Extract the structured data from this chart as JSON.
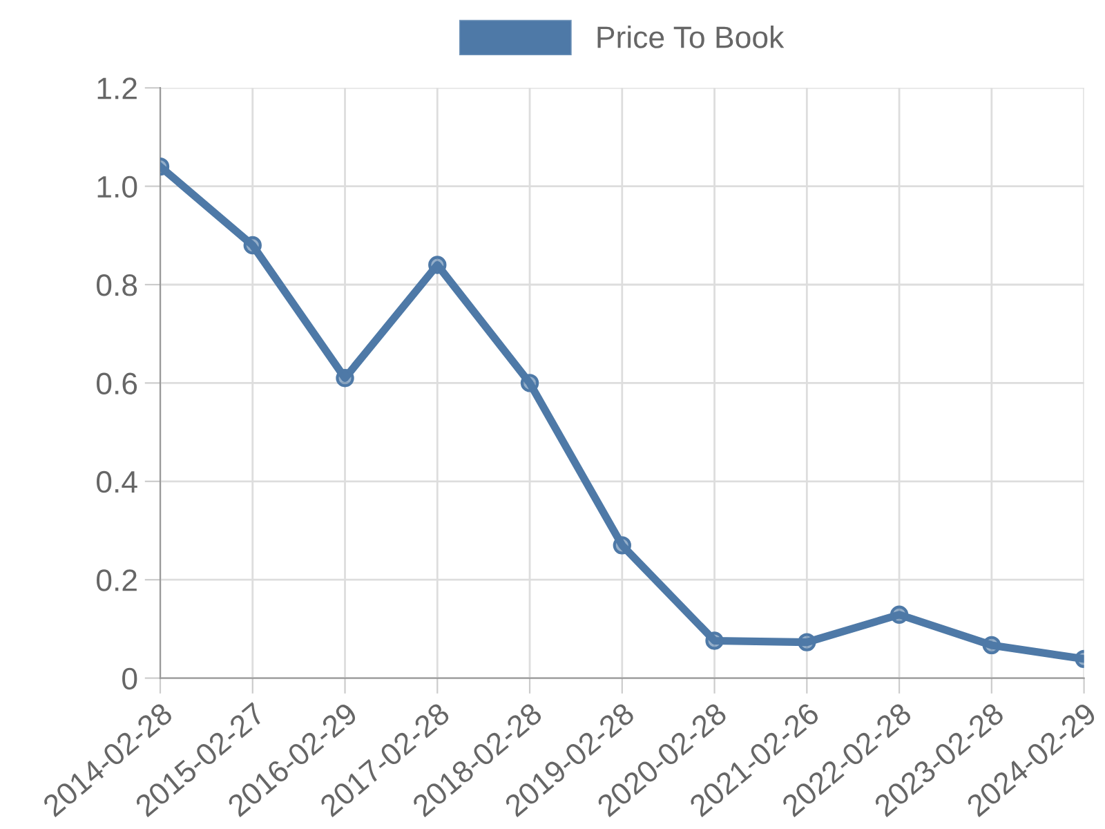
{
  "chart_data": {
    "type": "line",
    "categories": [
      "2014-02-28",
      "2015-02-27",
      "2016-02-29",
      "2017-02-28",
      "2018-02-28",
      "2019-02-28",
      "2020-02-28",
      "2021-02-26",
      "2022-02-28",
      "2023-02-28",
      "2024-02-29"
    ],
    "series": [
      {
        "name": "Price To Book",
        "color": "#4e79a7",
        "values": [
          1.04,
          0.88,
          0.61,
          0.84,
          0.6,
          0.27,
          0.076,
          0.073,
          0.129,
          0.067,
          0.039
        ]
      }
    ],
    "ylim": [
      0,
      1.2
    ],
    "yticks": [
      {
        "value": 0,
        "label": "0"
      },
      {
        "value": 0.2,
        "label": "0.2"
      },
      {
        "value": 0.4,
        "label": "0.4"
      },
      {
        "value": 0.6,
        "label": "0.6"
      },
      {
        "value": 0.8,
        "label": "0.8"
      },
      {
        "value": 1.0,
        "label": "1.0"
      },
      {
        "value": 1.2,
        "label": "1.2"
      }
    ],
    "grid": true,
    "legend": "top",
    "marker": "circle",
    "line_style": "solid"
  }
}
